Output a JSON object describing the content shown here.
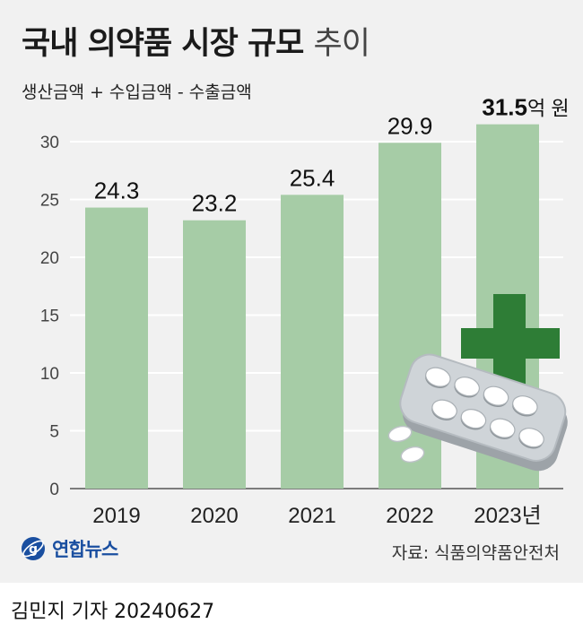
{
  "header": {
    "title_bold": "국내 의약품 시장 규모",
    "title_light": "추이",
    "subtitle": "생산금액 + 수입금액 - 수출금액"
  },
  "chart_data": {
    "type": "bar",
    "categories": [
      "2019",
      "2020",
      "2021",
      "2022",
      "2023"
    ],
    "category_labels": [
      "2019",
      "2020",
      "2021",
      "2022",
      "2023년"
    ],
    "values": [
      24.3,
      23.2,
      25.4,
      29.9,
      31.5
    ],
    "value_labels": [
      "24.3",
      "23.2",
      "25.4",
      "29.9",
      "31.5"
    ],
    "last_value_unit": "억 원",
    "yticks": [
      0,
      5,
      10,
      15,
      20,
      25,
      30
    ],
    "ylim": [
      0,
      32
    ],
    "grid": true,
    "colors": {
      "bar": "#a6cca6",
      "panel": "#f1f1f1",
      "grid": "#ffffff",
      "cross": "#2e7d36"
    }
  },
  "footer": {
    "logo_text": "연합뉴스",
    "source": "자료: 식품의약품안전처",
    "byline": "김민지 기자  20240627"
  }
}
